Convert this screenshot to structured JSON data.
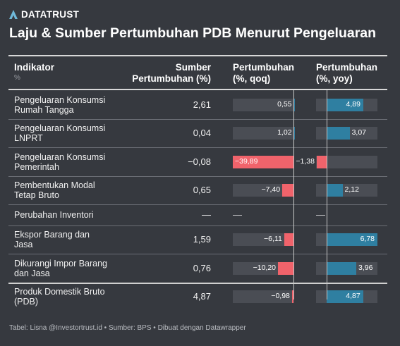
{
  "brand": {
    "name": "DATATRUST",
    "icon": "datatrust-logo-icon"
  },
  "title": "Laju & Sumber Pertumbuhan PDB Menurut Pengeluaran",
  "headers": {
    "indikator": "Indikator",
    "indikator_sub": "%",
    "sumber_line1": "Sumber",
    "sumber_line2": "Pertumbuhan (%)",
    "qoq_line1": "Pertumbuhan",
    "qoq_line2": "(%, qoq)",
    "yoy_line1": "Pertumbuhan",
    "yoy_line2": "(%, yoy)"
  },
  "rows": [
    {
      "label1": "Pengeluaran Konsumsi",
      "label2": "Rumah Tangga",
      "sumber": "2,61",
      "qoq": "0,55",
      "qoq_v": 0.55,
      "yoy": "4,89",
      "yoy_v": 4.89
    },
    {
      "label1": "Pengeluaran Konsumsi",
      "label2": "LNPRT",
      "sumber": "0,04",
      "qoq": "1,02",
      "qoq_v": 1.02,
      "yoy": "3,07",
      "yoy_v": 3.07
    },
    {
      "label1": "Pengeluaran Konsumsi",
      "label2": "Pemerintah",
      "sumber": "−0,08",
      "qoq": "−39,89",
      "qoq_v": -39.89,
      "yoy": "−1,38",
      "yoy_v": -1.38
    },
    {
      "label1": "Pembentukan Modal",
      "label2": "Tetap Bruto",
      "sumber": "0,65",
      "qoq": "−7,40",
      "qoq_v": -7.4,
      "yoy": "2,12",
      "yoy_v": 2.12
    },
    {
      "label1": "Perubahan Inventori",
      "label2": "",
      "sumber": "—",
      "qoq": "—",
      "qoq_v": null,
      "yoy": "—",
      "yoy_v": null
    },
    {
      "label1": "Ekspor Barang dan",
      "label2": "Jasa",
      "sumber": "1,59",
      "qoq": "−6,11",
      "qoq_v": -6.11,
      "yoy": "6,78",
      "yoy_v": 6.78
    },
    {
      "label1": "Dikurangi Impor Barang",
      "label2": "dan Jasa",
      "sumber": "0,76",
      "qoq": "−10,20",
      "qoq_v": -10.2,
      "yoy": "3,96",
      "yoy_v": 3.96
    },
    {
      "label1": "Produk Domestik Bruto",
      "label2": "(PDB)",
      "sumber": "4,87",
      "qoq": "−0,98",
      "qoq_v": -0.98,
      "yoy": "4,87",
      "yoy_v": 4.87
    }
  ],
  "colors": {
    "negative": "#f0636b",
    "positive": "#2f7fa1",
    "track": "#4a4d54",
    "background": "#36393f"
  },
  "footer": "Tabel: Lisna @Investortrust.id • Sumber: BPS • Dibuat dengan Datawrapper"
}
